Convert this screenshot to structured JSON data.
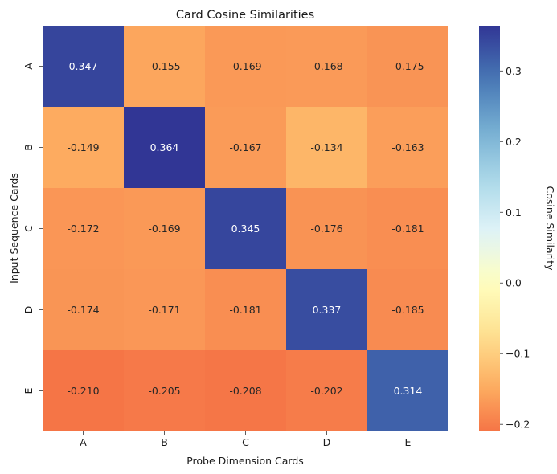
{
  "chart_data": {
    "type": "heatmap",
    "title": "Card Cosine Similarities",
    "xlabel": "Probe Dimension Cards",
    "ylabel": "Input Sequence Cards",
    "x_categories": [
      "A",
      "B",
      "C",
      "D",
      "E"
    ],
    "y_categories": [
      "A",
      "B",
      "C",
      "D",
      "E"
    ],
    "values": [
      [
        0.347,
        -0.155,
        -0.169,
        -0.168,
        -0.175
      ],
      [
        -0.149,
        0.364,
        -0.167,
        -0.134,
        -0.163
      ],
      [
        -0.172,
        -0.169,
        0.345,
        -0.176,
        -0.181
      ],
      [
        -0.174,
        -0.171,
        -0.181,
        0.337,
        -0.185
      ],
      [
        -0.21,
        -0.205,
        -0.208,
        -0.202,
        0.314
      ]
    ],
    "value_format": "0.000",
    "colorbar": {
      "label": "Cosine Similarity",
      "range": [
        -0.21,
        0.364
      ],
      "center": 0,
      "colormap": "RdYlBu_r",
      "ticks": [
        -0.2,
        -0.1,
        0.0,
        0.1,
        0.2,
        0.3
      ],
      "tick_labels": [
        "−0.2",
        "−0.1",
        "0.0",
        "0.1",
        "0.2",
        "0.3"
      ]
    },
    "grid": false
  }
}
